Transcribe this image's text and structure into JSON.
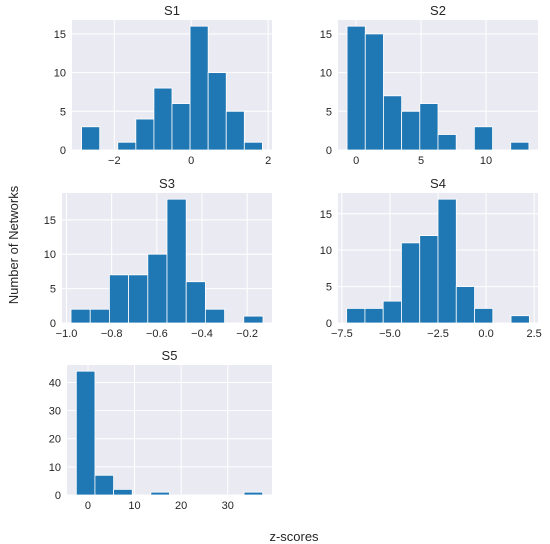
{
  "figure": {
    "ylabel": "Number of Networks",
    "xlabel": "z-scores"
  },
  "chart_data": [
    {
      "type": "bar",
      "title": "S1",
      "bin_edges": [
        -2.85,
        -2.38,
        -1.91,
        -1.44,
        -0.97,
        -0.5,
        -0.03,
        0.44,
        0.91,
        1.38,
        1.85
      ],
      "values": [
        3,
        0,
        1,
        4,
        8,
        6,
        16,
        10,
        5,
        1
      ],
      "xlim": [
        -3.1,
        2.1
      ],
      "ylim": [
        0,
        16.8
      ],
      "xticks": [
        -2,
        0,
        2
      ],
      "xtick_labels": [
        "−2",
        "0",
        "2"
      ],
      "yticks": [
        0,
        5,
        10,
        15
      ],
      "ytick_labels": [
        "0",
        "5",
        "10",
        "15"
      ]
    },
    {
      "type": "bar",
      "title": "S2",
      "bin_edges": [
        -0.7,
        0.7,
        2.1,
        3.5,
        4.9,
        6.3,
        7.7,
        9.1,
        10.5,
        11.9,
        13.3
      ],
      "values": [
        16,
        15,
        7,
        5,
        6,
        2,
        0,
        3,
        0,
        1
      ],
      "xlim": [
        -1.4,
        14.0
      ],
      "ylim": [
        0,
        16.8
      ],
      "xticks": [
        0,
        5,
        10
      ],
      "xtick_labels": [
        "0",
        "5",
        "10"
      ],
      "yticks": [
        0,
        5,
        10,
        15
      ],
      "ytick_labels": [
        "0",
        "5",
        "10",
        "15"
      ]
    },
    {
      "type": "bar",
      "title": "S3",
      "bin_edges": [
        -0.98,
        -0.895,
        -0.81,
        -0.725,
        -0.64,
        -0.555,
        -0.47,
        -0.385,
        -0.3,
        -0.215,
        -0.13
      ],
      "values": [
        2,
        2,
        7,
        7,
        10,
        18,
        6,
        2,
        0,
        1
      ],
      "xlim": [
        -1.02,
        -0.09
      ],
      "ylim": [
        0,
        18.9
      ],
      "xticks": [
        -1.0,
        -0.8,
        -0.6,
        -0.4,
        -0.2
      ],
      "xtick_labels": [
        "−1.0",
        "−0.8",
        "−0.6",
        "−0.4",
        "−0.2"
      ],
      "yticks": [
        0,
        5,
        10,
        15
      ],
      "ytick_labels": [
        "0",
        "5",
        "10",
        "15"
      ]
    },
    {
      "type": "bar",
      "title": "S4",
      "bin_edges": [
        -7.25,
        -6.3,
        -5.35,
        -4.4,
        -3.45,
        -2.5,
        -1.55,
        -0.6,
        0.35,
        1.3,
        2.25
      ],
      "values": [
        2,
        2,
        3,
        11,
        12,
        17,
        5,
        2,
        0,
        1
      ],
      "xlim": [
        -7.7,
        2.7
      ],
      "ylim": [
        0,
        17.85
      ],
      "xticks": [
        -7.5,
        -5.0,
        -2.5,
        0.0,
        2.5
      ],
      "xtick_labels": [
        "−7.5",
        "−5.0",
        "−2.5",
        "0.0",
        "2.5"
      ],
      "yticks": [
        0,
        5,
        10,
        15
      ],
      "ytick_labels": [
        "0",
        "5",
        "10",
        "15"
      ]
    },
    {
      "type": "bar",
      "title": "S5",
      "bin_edges": [
        -2.5,
        1.5,
        5.5,
        9.5,
        13.5,
        17.5,
        21.5,
        25.5,
        29.5,
        33.5,
        37.5
      ],
      "values": [
        44,
        7,
        2,
        0,
        1,
        0,
        0,
        0,
        0,
        1
      ],
      "xlim": [
        -4.5,
        39.5
      ],
      "ylim": [
        0,
        46.2
      ],
      "xticks": [
        0,
        10,
        20,
        30
      ],
      "xtick_labels": [
        "0",
        "10",
        "20",
        "30"
      ],
      "yticks": [
        0,
        10,
        20,
        30,
        40
      ],
      "ytick_labels": [
        "0",
        "10",
        "20",
        "30",
        "40"
      ]
    }
  ],
  "style": {
    "plot_background": "#eaeaf2",
    "grid_color": "#ffffff",
    "bar_color": "#1f77b4",
    "bar_edge": "#ffffff",
    "text_color": "#262626"
  }
}
